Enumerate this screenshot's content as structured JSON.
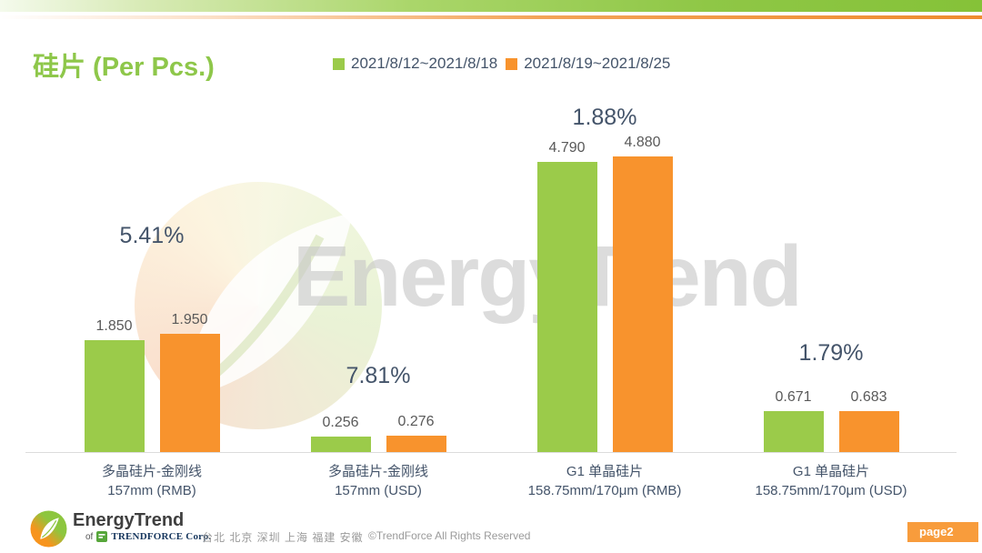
{
  "title": "硅片 (Per Pcs.)",
  "legend": {
    "items": [
      {
        "label": "2021/8/12~2021/8/18",
        "color": "#9bcb4a"
      },
      {
        "label": "2021/8/19~2021/8/25",
        "color": "#f8932d"
      }
    ]
  },
  "chart_data": {
    "type": "bar",
    "title": "硅片 (Per Pcs.)",
    "categories": [
      "多晶硅片-金刚线\n157mm (RMB)",
      "多晶硅片-金刚线\n157mm (USD)",
      "G1 单晶硅片\n158.75mm/170μm (RMB)",
      "G1 单晶硅片\n158.75mm/170μm (USD)"
    ],
    "series": [
      {
        "name": "2021/8/12~2021/8/18",
        "color": "#9bcb4a",
        "values": [
          1.85,
          0.256,
          4.79,
          0.671
        ],
        "labels": [
          "1.850",
          "0.256",
          "4.790",
          "0.671"
        ]
      },
      {
        "name": "2021/8/19~2021/8/25",
        "color": "#f8932d",
        "values": [
          1.95,
          0.276,
          4.88,
          0.683
        ],
        "labels": [
          "1.950",
          "0.276",
          "4.880",
          "0.683"
        ]
      }
    ],
    "change_labels": [
      "5.41%",
      "7.81%",
      "1.88%",
      "1.79%"
    ],
    "ylim": [
      0,
      5
    ],
    "grid": false,
    "legend_position": "top"
  },
  "watermark": {
    "text": "EnergyTrend"
  },
  "footer": {
    "logo_title": "EnergyTrend",
    "logo_sub_of": "of",
    "logo_sub_corp": "TRENDFORCE Corp.",
    "locations": "台北 北京 深圳 上海 福建 安徽",
    "copyright": "©TrendForce All Rights Reserved",
    "page_label": "page2"
  }
}
